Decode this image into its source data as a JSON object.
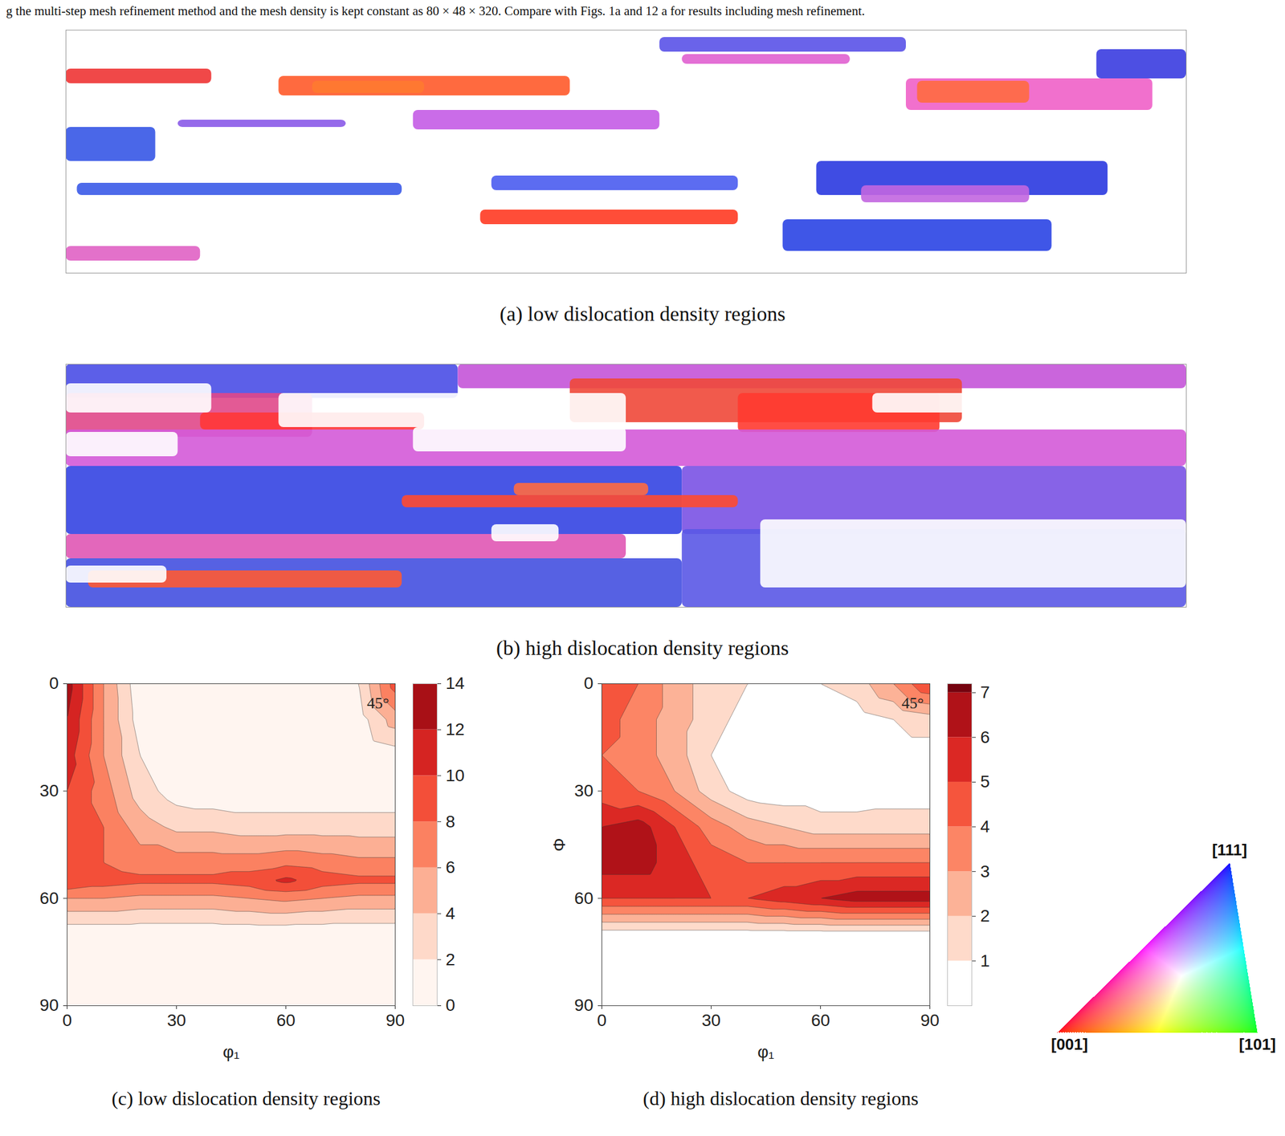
{
  "figure": {
    "caption_top": "g the multi-step mesh refinement method and the mesh density is kept constant as 80 × 48 × 320. Compare with Figs. 1a and 12 a for results including mesh refinement.",
    "ipf_key": {
      "labels": [
        "[001]",
        "[101]",
        "[111]"
      ]
    }
  },
  "chart_data": [
    {
      "type": "map",
      "caption": "(a) low dislocation density regions",
      "xlim": [
        0,
        100
      ],
      "ylim": [
        100,
        0
      ],
      "tick_labels": false,
      "regions": [
        {
          "x1": 19,
          "x2": 45,
          "y1": 19,
          "y2": 27,
          "color": "#ff5a2a"
        },
        {
          "x1": 22,
          "x2": 32,
          "y1": 21,
          "y2": 26,
          "color": "#ff7a30"
        },
        {
          "x1": 75,
          "x2": 97,
          "y1": 20,
          "y2": 33,
          "color": "#f060c8"
        },
        {
          "x1": 76,
          "x2": 86,
          "y1": 21,
          "y2": 30,
          "color": "#ff6a40"
        },
        {
          "x1": 92,
          "x2": 100,
          "y1": 8,
          "y2": 20,
          "color": "#3a3ce0"
        },
        {
          "x1": 0,
          "x2": 8,
          "y1": 40,
          "y2": 54,
          "color": "#3656e6"
        },
        {
          "x1": 31,
          "x2": 53,
          "y1": 33,
          "y2": 41,
          "color": "#c45ce6"
        },
        {
          "x1": 67,
          "x2": 93,
          "y1": 54,
          "y2": 68,
          "color": "#2a38e0"
        },
        {
          "x1": 71,
          "x2": 86,
          "y1": 64,
          "y2": 71,
          "color": "#c266e0"
        },
        {
          "x1": 37,
          "x2": 60,
          "y1": 74,
          "y2": 80,
          "color": "#ff3a22"
        },
        {
          "x1": 64,
          "x2": 88,
          "y1": 78,
          "y2": 91,
          "color": "#2a44e4"
        },
        {
          "x1": 1,
          "x2": 30,
          "y1": 63,
          "y2": 68,
          "color": "#3a5ae8"
        },
        {
          "x1": 38,
          "x2": 60,
          "y1": 60,
          "y2": 66,
          "color": "#4a5cf0"
        },
        {
          "x1": 0,
          "x2": 13,
          "y1": 16,
          "y2": 22,
          "color": "#ee3434"
        },
        {
          "x1": 53,
          "x2": 75,
          "y1": 3,
          "y2": 9,
          "color": "#5a52e8"
        },
        {
          "x1": 0,
          "x2": 12,
          "y1": 89,
          "y2": 95,
          "color": "#e062c4"
        },
        {
          "x1": 55,
          "x2": 70,
          "y1": 10,
          "y2": 14,
          "color": "#e060d0"
        },
        {
          "x1": 10,
          "x2": 25,
          "y1": 37,
          "y2": 40,
          "color": "#8a5ae8"
        }
      ]
    },
    {
      "type": "map",
      "caption": "(b) high dislocation density regions",
      "xlim": [
        0,
        100
      ],
      "ylim": [
        100,
        0
      ],
      "tick_labels": false,
      "regions": [
        {
          "x1": 0,
          "x2": 35,
          "y1": 0,
          "y2": 14,
          "color": "#4a4ee6"
        },
        {
          "x1": 35,
          "x2": 100,
          "y1": 0,
          "y2": 10,
          "color": "#c454d8"
        },
        {
          "x1": 45,
          "x2": 80,
          "y1": 6,
          "y2": 24,
          "color": "#f04838"
        },
        {
          "x1": 60,
          "x2": 78,
          "y1": 12,
          "y2": 28,
          "color": "#ff3a30"
        },
        {
          "x1": 0,
          "x2": 22,
          "y1": 12,
          "y2": 30,
          "color": "#e0488a"
        },
        {
          "x1": 12,
          "x2": 32,
          "y1": 20,
          "y2": 27,
          "color": "#ff3636"
        },
        {
          "x1": 0,
          "x2": 100,
          "y1": 27,
          "y2": 42,
          "color": "#d45ad8"
        },
        {
          "x1": 0,
          "x2": 55,
          "y1": 42,
          "y2": 70,
          "color": "#3444e2"
        },
        {
          "x1": 55,
          "x2": 100,
          "y1": 42,
          "y2": 70,
          "color": "#7a52e4"
        },
        {
          "x1": 30,
          "x2": 60,
          "y1": 54,
          "y2": 59,
          "color": "#ff4a30"
        },
        {
          "x1": 40,
          "x2": 52,
          "y1": 49,
          "y2": 54,
          "color": "#ff6a40"
        },
        {
          "x1": 0,
          "x2": 50,
          "y1": 70,
          "y2": 80,
          "color": "#e056b4"
        },
        {
          "x1": 0,
          "x2": 55,
          "y1": 80,
          "y2": 100,
          "color": "#4450e0"
        },
        {
          "x1": 2,
          "x2": 30,
          "y1": 85,
          "y2": 92,
          "color": "#ff5a32"
        },
        {
          "x1": 55,
          "x2": 100,
          "y1": 68,
          "y2": 100,
          "color": "#5a58e6"
        },
        {
          "x1": 19,
          "x2": 50,
          "y1": 12,
          "y2": 26,
          "color": "#ffffff"
        },
        {
          "x1": 31,
          "x2": 50,
          "y1": 26,
          "y2": 36,
          "color": "#ffffff"
        },
        {
          "x1": 72,
          "x2": 100,
          "y1": 12,
          "y2": 20,
          "color": "#ffffff"
        },
        {
          "x1": 0,
          "x2": 13,
          "y1": 8,
          "y2": 20,
          "color": "#ffffff"
        },
        {
          "x1": 0,
          "x2": 10,
          "y1": 28,
          "y2": 38,
          "color": "#ffffff"
        },
        {
          "x1": 62,
          "x2": 100,
          "y1": 64,
          "y2": 92,
          "color": "#ffffff"
        },
        {
          "x1": 0,
          "x2": 9,
          "y1": 83,
          "y2": 90,
          "color": "#ffffff"
        },
        {
          "x1": 38,
          "x2": 44,
          "y1": 66,
          "y2": 73,
          "color": "#ffffff"
        }
      ]
    },
    {
      "type": "contour",
      "caption": "(c) low dislocation density regions",
      "x_label": "φ₁",
      "annotation": "45°",
      "xlim": [
        0,
        90
      ],
      "ylim": [
        90,
        0
      ],
      "xticks": [
        0,
        30,
        60,
        90
      ],
      "yticks": [
        0,
        30,
        60,
        90
      ],
      "x": [
        0,
        10,
        20,
        30,
        40,
        50,
        60,
        70,
        80,
        90
      ],
      "y": [
        0,
        10,
        20,
        30,
        40,
        50,
        55,
        60,
        70,
        80,
        90
      ],
      "values": [
        [
          13,
          6,
          0.5,
          0,
          0,
          0,
          0,
          0,
          2,
          9
        ],
        [
          12,
          6,
          1,
          0,
          0,
          0,
          0,
          0,
          1,
          5
        ],
        [
          11,
          6,
          2,
          0,
          0,
          0,
          0,
          0,
          0,
          1
        ],
        [
          10,
          7,
          3,
          1,
          0.5,
          0.5,
          0.5,
          0.5,
          0.5,
          0.5
        ],
        [
          10,
          8,
          5,
          3.5,
          3.5,
          3,
          3,
          3,
          3,
          3
        ],
        [
          9,
          8,
          7,
          7,
          7,
          7,
          7.5,
          7,
          6.5,
          6.5
        ],
        [
          10,
          9,
          8.5,
          8.5,
          8.5,
          9,
          10.5,
          9,
          8.5,
          8.5
        ],
        [
          6,
          6,
          5.5,
          5.5,
          5.5,
          6,
          6.5,
          6,
          5.5,
          5.5
        ],
        [
          0.5,
          0.5,
          0.5,
          0.5,
          0.5,
          0.5,
          0.5,
          0.5,
          0.5,
          0.5
        ],
        [
          0,
          0,
          0,
          0,
          0,
          0,
          0,
          0,
          0,
          0
        ],
        [
          0,
          0,
          0,
          0,
          0,
          0,
          0,
          0,
          0,
          0
        ]
      ],
      "colorbar": {
        "range": [
          0,
          14
        ],
        "ticks": [
          0,
          2,
          4,
          6,
          8,
          10,
          12,
          14
        ]
      }
    },
    {
      "type": "contour",
      "caption": "(d) high dislocation density regions",
      "x_label": "φ₁",
      "y_label": "Φ",
      "annotation": "45°",
      "xlim": [
        0,
        90
      ],
      "ylim": [
        90,
        0
      ],
      "xticks": [
        0,
        30,
        60,
        90
      ],
      "yticks": [
        0,
        30,
        60,
        90
      ],
      "x": [
        0,
        10,
        20,
        30,
        40,
        50,
        60,
        70,
        80,
        90
      ],
      "y": [
        0,
        10,
        20,
        30,
        40,
        50,
        60,
        70,
        80,
        90
      ],
      "values": [
        [
          5,
          4,
          2.5,
          1.5,
          1,
          1,
          1,
          1.5,
          3,
          5
        ],
        [
          4.5,
          3.5,
          2.5,
          1.5,
          0.5,
          0.5,
          0.5,
          0.5,
          1,
          1.5
        ],
        [
          4,
          3.5,
          2.5,
          1,
          0,
          0,
          0,
          0,
          0.5,
          0.5
        ],
        [
          4.5,
          4,
          3,
          1.5,
          0.5,
          0.3,
          0.3,
          0.3,
          0.5,
          0.5
        ],
        [
          6,
          6.5,
          5,
          3.5,
          2.5,
          2,
          1.5,
          1.5,
          1.5,
          1.5
        ],
        [
          6.5,
          6.5,
          5.5,
          4.5,
          4,
          4,
          4,
          4,
          4,
          4
        ],
        [
          5,
          5,
          5,
          5,
          5,
          5.5,
          6,
          6.5,
          6.5,
          6.5
        ],
        [
          0.5,
          0.5,
          0.5,
          0.5,
          0.5,
          0.5,
          0.5,
          0.5,
          0.5,
          0.5
        ],
        [
          0,
          0,
          0,
          0,
          0,
          0,
          0,
          0,
          0,
          0
        ],
        [
          0,
          0,
          0,
          0,
          0,
          0,
          0,
          0,
          0,
          0
        ]
      ],
      "colorbar": {
        "range": [
          0,
          7.2
        ],
        "ticks": [
          1,
          2,
          3,
          4,
          5,
          6,
          7
        ]
      }
    }
  ]
}
